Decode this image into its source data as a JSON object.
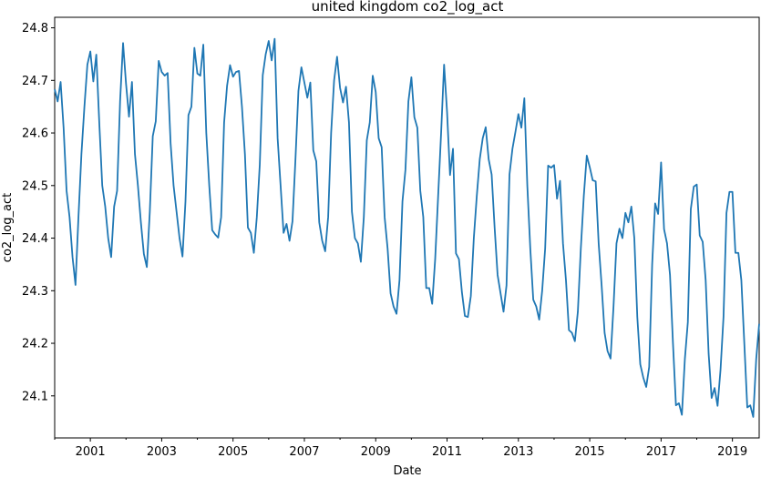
{
  "chart_data": {
    "type": "line",
    "title": "united kingdom co2_log_act",
    "xlabel": "Date",
    "ylabel": "co2_log_act",
    "xlim": [
      "2000-01",
      "2019-10"
    ],
    "ylim": [
      24.02,
      24.82
    ],
    "grid": false,
    "x_ticks": [
      "2001",
      "2003",
      "2005",
      "2007",
      "2009",
      "2011",
      "2013",
      "2015",
      "2017",
      "2019"
    ],
    "y_ticks": [
      "24.1",
      "24.2",
      "24.3",
      "24.4",
      "24.5",
      "24.6",
      "24.7",
      "24.8"
    ],
    "series": [
      {
        "color": "#1f77b4",
        "x_start": "2000-01",
        "frequency": "monthly",
        "values": [
          24.683,
          24.66,
          24.697,
          24.61,
          24.49,
          24.44,
          24.364,
          24.311,
          24.44,
          24.56,
          24.65,
          24.73,
          24.755,
          24.698,
          24.749,
          24.62,
          24.5,
          24.46,
          24.4,
          24.364,
          24.46,
          24.49,
          24.66,
          24.771,
          24.694,
          24.631,
          24.697,
          24.56,
          24.5,
          24.43,
          24.37,
          24.345,
          24.45,
          24.594,
          24.622,
          24.737,
          24.716,
          24.709,
          24.714,
          24.58,
          24.5,
          24.45,
          24.4,
          24.365,
          24.47,
          24.634,
          24.65,
          24.762,
          24.713,
          24.709,
          24.768,
          24.6,
          24.5,
          24.415,
          24.407,
          24.401,
          24.44,
          24.62,
          24.69,
          24.729,
          24.707,
          24.716,
          24.718,
          24.65,
          24.56,
          24.42,
          24.41,
          24.372,
          24.44,
          24.54,
          24.71,
          24.75,
          24.775,
          24.738,
          24.779,
          24.59,
          24.5,
          24.41,
          24.427,
          24.395,
          24.432,
          24.55,
          24.68,
          24.725,
          24.696,
          24.667,
          24.696,
          24.567,
          24.546,
          24.43,
          24.395,
          24.375,
          24.44,
          24.6,
          24.7,
          24.745,
          24.686,
          24.658,
          24.688,
          24.62,
          24.45,
          24.4,
          24.39,
          24.355,
          24.44,
          24.586,
          24.62,
          24.709,
          24.678,
          24.59,
          24.573,
          24.44,
          24.38,
          24.295,
          24.27,
          24.256,
          24.32,
          24.47,
          24.53,
          24.66,
          24.706,
          24.63,
          24.61,
          24.49,
          24.44,
          24.305,
          24.305,
          24.275,
          24.36,
          24.48,
          24.6,
          24.73,
          24.64,
          24.52,
          24.57,
          24.371,
          24.36,
          24.297,
          24.252,
          24.25,
          24.29,
          24.4,
          24.48,
          24.55,
          24.59,
          24.611,
          24.55,
          24.521,
          24.42,
          24.33,
          24.295,
          24.26,
          24.31,
          24.521,
          24.57,
          24.602,
          24.636,
          24.61,
          24.666,
          24.5,
          24.38,
          24.283,
          24.27,
          24.245,
          24.3,
          24.38,
          24.538,
          24.534,
          24.539,
          24.475,
          24.509,
          24.39,
          24.32,
          24.225,
          24.22,
          24.204,
          24.26,
          24.38,
          24.48,
          24.557,
          24.535,
          24.51,
          24.508,
          24.39,
          24.31,
          24.22,
          24.185,
          24.171,
          24.27,
          24.39,
          24.418,
          24.4,
          24.448,
          24.43,
          24.46,
          24.4,
          24.25,
          24.16,
          24.135,
          24.117,
          24.155,
          24.35,
          24.466,
          24.446,
          24.544,
          24.417,
          24.39,
          24.33,
          24.2,
          24.082,
          24.086,
          24.064,
          24.17,
          24.24,
          24.455,
          24.498,
          24.502,
          24.405,
          24.393,
          24.32,
          24.18,
          24.096,
          24.115,
          24.081,
          24.15,
          24.25,
          24.448,
          24.488,
          24.488,
          24.372,
          24.372,
          24.32,
          24.2,
          24.078,
          24.082,
          24.06,
          24.17,
          24.237
        ]
      }
    ]
  }
}
